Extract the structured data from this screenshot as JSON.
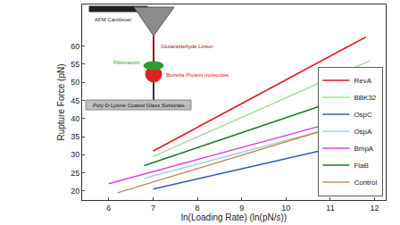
{
  "chart_data": {
    "type": "line",
    "x_label": "ln(Loading Rate) (ln(pN/s))",
    "y_label": "Rupture Force (pN)",
    "xlim": [
      5.4,
      12.25
    ],
    "xticks": [
      6,
      7,
      8,
      9,
      10,
      11,
      12
    ],
    "ylim": [
      17.5,
      71.5
    ],
    "yticks": [
      20,
      25,
      30,
      35,
      40,
      45,
      50,
      55,
      60
    ],
    "grid": false,
    "legend": "lower right",
    "series": [
      {
        "name": "RevA",
        "color": "#e0181c",
        "x": [
          7,
          11.8
        ],
        "values": [
          31,
          62.5
        ]
      },
      {
        "name": "BBK32",
        "color": "#9fdc98",
        "x": [
          7,
          11.9
        ],
        "values": [
          29.5,
          56
        ]
      },
      {
        "name": "OspC",
        "color": "#2c5fb5",
        "x": [
          7,
          12
        ],
        "values": [
          20.5,
          34.5
        ]
      },
      {
        "name": "OspA",
        "color": "#a6cde6",
        "x": [
          6.8,
          12
        ],
        "values": [
          23.5,
          40.5
        ]
      },
      {
        "name": "BmpA",
        "color": "#e040e0",
        "x": [
          6,
          12
        ],
        "values": [
          22,
          42
        ]
      },
      {
        "name": "FlaB",
        "color": "#1c7a22",
        "x": [
          6.8,
          12
        ],
        "values": [
          27,
          48.5
        ]
      },
      {
        "name": "Control",
        "color": "#c98a4e",
        "x": [
          6.2,
          12
        ],
        "values": [
          19.5,
          41
        ]
      }
    ],
    "annotations": [
      "AFM Cantilever",
      "Glutaraldehyde Linker",
      "Fibronectin",
      "Borrelia Protein molecules",
      "Poly-D-Lysine Coated Glass Substrate"
    ]
  }
}
